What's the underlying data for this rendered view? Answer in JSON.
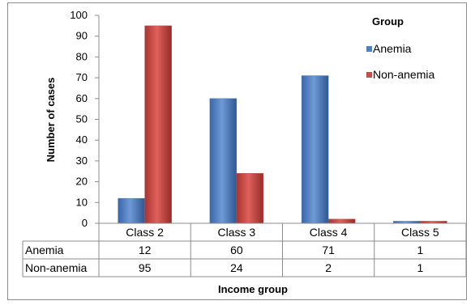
{
  "chart_data": {
    "type": "bar",
    "categories": [
      "Class 2",
      "Class 3",
      "Class 4",
      "Class 5"
    ],
    "series": [
      {
        "name": "Anemia",
        "values": [
          12,
          60,
          71,
          1
        ],
        "color": "#4f81bd"
      },
      {
        "name": "Non-anemia",
        "values": [
          95,
          24,
          2,
          1
        ],
        "color": "#c0504d"
      }
    ],
    "xlabel": "Income group",
    "ylabel": "Number of cases",
    "ylim": [
      0,
      100
    ],
    "yticks": [
      0,
      10,
      20,
      30,
      40,
      50,
      60,
      70,
      80,
      90,
      100
    ],
    "legend": {
      "title": "Group",
      "position": "top-right"
    },
    "grid": false,
    "data_table": {
      "rows": [
        {
          "label": "Anemia",
          "values": [
            "12",
            "60",
            "71",
            "1"
          ]
        },
        {
          "label": "Non-anemia",
          "values": [
            "95",
            "24",
            "2",
            "1"
          ]
        }
      ]
    }
  }
}
